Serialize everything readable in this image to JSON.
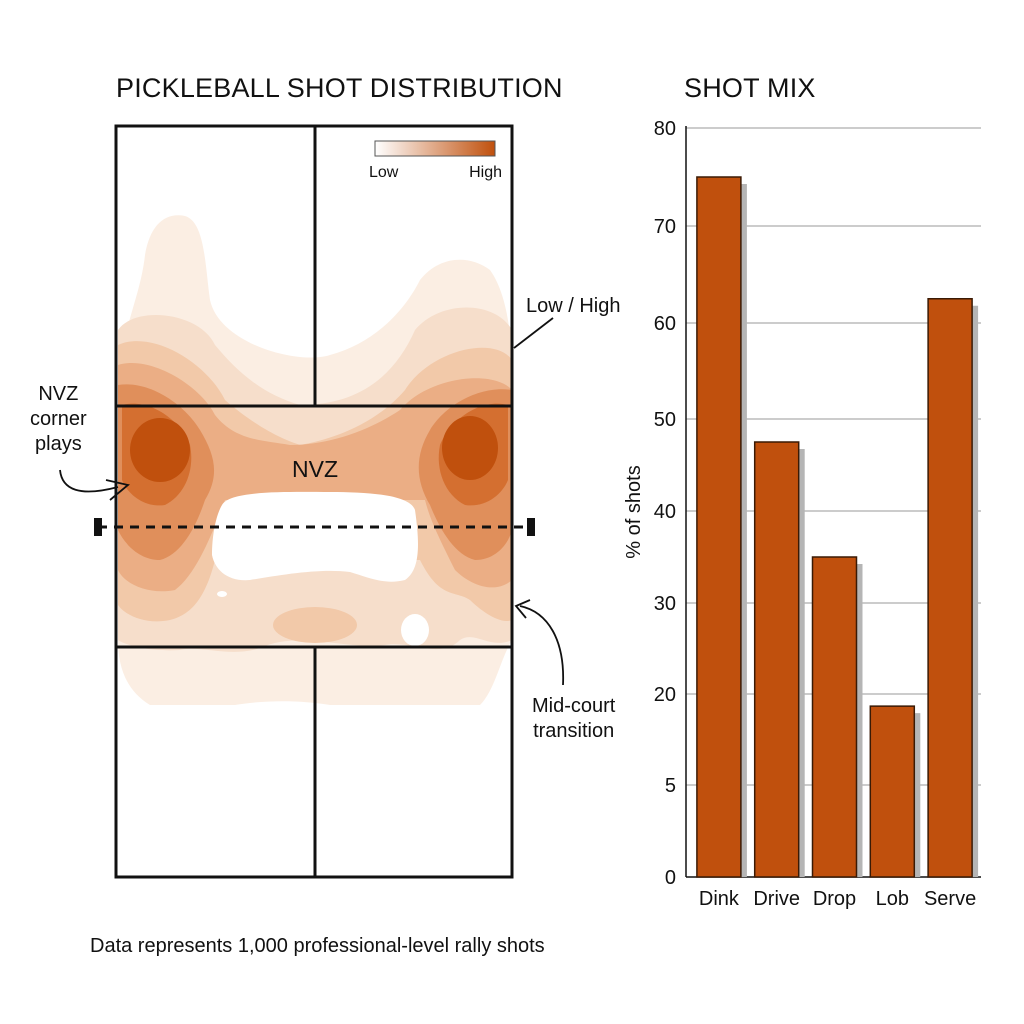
{
  "colors": {
    "accent": "#C0500D",
    "line": "#111111",
    "grid": "#9a9a9a",
    "shadow": "#b5b5b5",
    "heat_low": "#FBEEE3",
    "heat_high": "#C0500D"
  },
  "heatmap": {
    "title": "PICKLEBALL SHOT DISTRIBUTION",
    "zone_label": "NVZ",
    "legend": {
      "low": "Low",
      "high": "High"
    },
    "annotations": {
      "low_high": "Low / High",
      "nvz_corner": [
        "NVZ",
        "corner",
        "plays"
      ],
      "mid_court": [
        "Mid-court",
        "transition"
      ]
    },
    "footnote": "Data represents 1,000 professional-level rally shots"
  },
  "chart_data": {
    "type": "bar",
    "title": "SHOT MIX",
    "ylabel": "% of shots",
    "xlabel": "",
    "categories": [
      "Dink",
      "Drive",
      "Drop",
      "Lob",
      "Serve"
    ],
    "values": [
      75,
      47.5,
      35,
      18,
      62.5
    ],
    "yticks": [
      0,
      5,
      20,
      30,
      40,
      50,
      60,
      70,
      80
    ],
    "grid": true
  }
}
